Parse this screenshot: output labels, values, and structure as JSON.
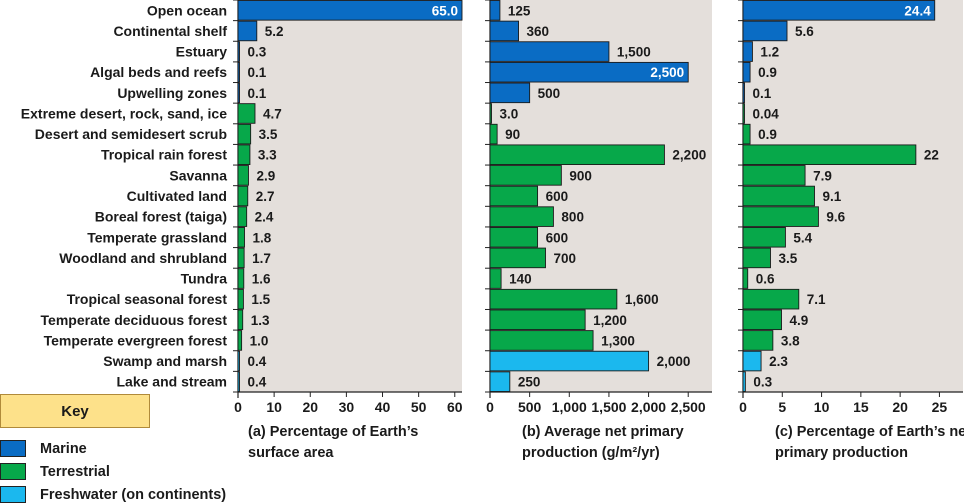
{
  "colors": {
    "marine": "#0a6cc4",
    "terrestrial": "#07a84a",
    "freshwater": "#1bb8ee",
    "plot_bg": "#e4dfdb",
    "key_bg": "#fde18a"
  },
  "legend": {
    "title": "Key",
    "items": [
      {
        "group": "marine",
        "label": "Marine"
      },
      {
        "group": "terrestrial",
        "label": "Terrestrial"
      },
      {
        "group": "freshwater",
        "label": "Freshwater (on continents)"
      }
    ]
  },
  "chart_data": [
    {
      "type": "bar",
      "orientation": "horizontal",
      "panel": "a",
      "xlabel_lines": [
        "(a) Percentage of Earth’s",
        "surface area"
      ],
      "xlim": [
        0,
        62
      ],
      "ticks": [
        0,
        10,
        20,
        30,
        40,
        50,
        60
      ],
      "tick_labels": [
        "0",
        "10",
        "20",
        "30",
        "40",
        "50",
        "60"
      ],
      "categories": [
        "Open ocean",
        "Continental shelf",
        "Estuary",
        "Algal beds and reefs",
        "Upwelling zones",
        "Extreme desert, rock, sand, ice",
        "Desert and semidesert scrub",
        "Tropical rain forest",
        "Savanna",
        "Cultivated land",
        "Boreal forest (taiga)",
        "Temperate grassland",
        "Woodland and shrubland",
        "Tundra",
        "Tropical seasonal forest",
        "Temperate deciduous forest",
        "Temperate evergreen forest",
        "Swamp and marsh",
        "Lake and stream"
      ],
      "groups": [
        "marine",
        "marine",
        "marine",
        "marine",
        "marine",
        "terrestrial",
        "terrestrial",
        "terrestrial",
        "terrestrial",
        "terrestrial",
        "terrestrial",
        "terrestrial",
        "terrestrial",
        "terrestrial",
        "terrestrial",
        "terrestrial",
        "terrestrial",
        "freshwater",
        "freshwater"
      ],
      "values": [
        65.0,
        5.2,
        0.3,
        0.1,
        0.1,
        4.7,
        3.5,
        3.3,
        2.9,
        2.7,
        2.4,
        1.8,
        1.7,
        1.6,
        1.5,
        1.3,
        1.0,
        0.4,
        0.4
      ],
      "value_labels": [
        "65.0",
        "5.2",
        "0.3",
        "0.1",
        "0.1",
        "4.7",
        "3.5",
        "3.3",
        "2.9",
        "2.7",
        "2.4",
        "1.8",
        "1.7",
        "1.6",
        "1.5",
        "1.3",
        "1.0",
        "0.4",
        "0.4"
      ]
    },
    {
      "type": "bar",
      "orientation": "horizontal",
      "panel": "b",
      "xlabel_lines": [
        "(b) Average net primary",
        "production (g/m²/yr)"
      ],
      "xlim": [
        0,
        2800
      ],
      "ticks": [
        0,
        500,
        1000,
        1500,
        2000,
        2500
      ],
      "tick_labels": [
        "0",
        "500",
        "1,000",
        "1,500",
        "2,000",
        "2,500"
      ],
      "categories": [
        "Open ocean",
        "Continental shelf",
        "Estuary",
        "Algal beds and reefs",
        "Upwelling zones",
        "Extreme desert, rock, sand, ice",
        "Desert and semidesert scrub",
        "Tropical rain forest",
        "Savanna",
        "Cultivated land",
        "Boreal forest (taiga)",
        "Temperate grassland",
        "Woodland and shrubland",
        "Tundra",
        "Tropical seasonal forest",
        "Temperate deciduous forest",
        "Temperate evergreen forest",
        "Swamp and marsh",
        "Lake and stream"
      ],
      "groups": [
        "marine",
        "marine",
        "marine",
        "marine",
        "marine",
        "terrestrial",
        "terrestrial",
        "terrestrial",
        "terrestrial",
        "terrestrial",
        "terrestrial",
        "terrestrial",
        "terrestrial",
        "terrestrial",
        "terrestrial",
        "terrestrial",
        "terrestrial",
        "freshwater",
        "freshwater"
      ],
      "values": [
        125,
        360,
        1500,
        2500,
        500,
        3.0,
        90,
        2200,
        900,
        600,
        800,
        600,
        700,
        140,
        1600,
        1200,
        1300,
        2000,
        250
      ],
      "value_labels": [
        "125",
        "360",
        "1,500",
        "2,500",
        "500",
        "3.0",
        "90",
        "2,200",
        "900",
        "600",
        "800",
        "600",
        "700",
        "140",
        "1,600",
        "1,200",
        "1,300",
        "2,000",
        "250"
      ]
    },
    {
      "type": "bar",
      "orientation": "horizontal",
      "panel": "c",
      "xlabel_lines": [
        "(c) Percentage of Earth’s net",
        "primary production"
      ],
      "xlim": [
        0,
        28
      ],
      "ticks": [
        0,
        5,
        10,
        15,
        20,
        25
      ],
      "tick_labels": [
        "0",
        "5",
        "10",
        "15",
        "20",
        "25"
      ],
      "categories": [
        "Open ocean",
        "Continental shelf",
        "Estuary",
        "Algal beds and reefs",
        "Upwelling zones",
        "Extreme desert, rock, sand, ice",
        "Desert and semidesert scrub",
        "Tropical rain forest",
        "Savanna",
        "Cultivated land",
        "Boreal forest (taiga)",
        "Temperate grassland",
        "Woodland and shrubland",
        "Tundra",
        "Tropical seasonal forest",
        "Temperate deciduous forest",
        "Temperate evergreen forest",
        "Swamp and marsh",
        "Lake and stream"
      ],
      "groups": [
        "marine",
        "marine",
        "marine",
        "marine",
        "marine",
        "terrestrial",
        "terrestrial",
        "terrestrial",
        "terrestrial",
        "terrestrial",
        "terrestrial",
        "terrestrial",
        "terrestrial",
        "terrestrial",
        "terrestrial",
        "terrestrial",
        "terrestrial",
        "freshwater",
        "freshwater"
      ],
      "values": [
        24.4,
        5.6,
        1.2,
        0.9,
        0.1,
        0.04,
        0.9,
        22,
        7.9,
        9.1,
        9.6,
        5.4,
        3.5,
        0.6,
        7.1,
        4.9,
        3.8,
        2.3,
        0.3
      ],
      "value_labels": [
        "24.4",
        "5.6",
        "1.2",
        "0.9",
        "0.1",
        "0.04",
        "0.9",
        "22",
        "7.9",
        "9.1",
        "9.6",
        "5.4",
        "3.5",
        "0.6",
        "7.1",
        "4.9",
        "3.8",
        "2.3",
        "0.3"
      ]
    }
  ]
}
